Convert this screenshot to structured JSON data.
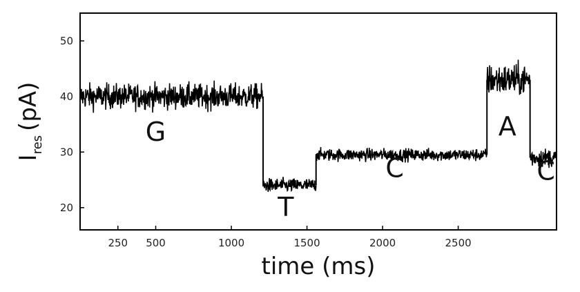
{
  "chart_data": {
    "type": "line",
    "xlabel": "time (ms)",
    "ylabel_main": "I",
    "ylabel_sub": "res",
    "ylabel_unit": "(pA)",
    "xlim": [
      0,
      3150
    ],
    "ylim": [
      16,
      55
    ],
    "x_ticks": [
      250,
      500,
      1000,
      1500,
      2000,
      2500
    ],
    "x_tick_labels": [
      "250",
      "500",
      "1000",
      "1500",
      "2000",
      "2500"
    ],
    "y_ticks": [
      20,
      30,
      40,
      50
    ],
    "y_tick_labels": [
      "20",
      "30",
      "40",
      "50"
    ],
    "grid": false,
    "line_color": "#000000",
    "segments": [
      {
        "x0": 0,
        "x1": 1210,
        "level": 40,
        "noise": 1.6
      },
      {
        "x0": 1210,
        "x1": 1560,
        "level": 24,
        "noise": 0.9
      },
      {
        "x0": 1560,
        "x1": 2690,
        "level": 29.5,
        "noise": 0.8
      },
      {
        "x0": 2690,
        "x1": 2975,
        "level": 43,
        "noise": 2.0
      },
      {
        "x0": 2975,
        "x1": 3150,
        "level": 29,
        "noise": 1.2
      }
    ],
    "annotations": [
      {
        "text": "G",
        "x": 500,
        "y": 32
      },
      {
        "text": "T",
        "x": 1360,
        "y": 18.5
      },
      {
        "text": "C",
        "x": 2080,
        "y": 25.5
      },
      {
        "text": "A",
        "x": 2825,
        "y": 33
      },
      {
        "text": "C",
        "x": 3080,
        "y": 25
      }
    ]
  }
}
